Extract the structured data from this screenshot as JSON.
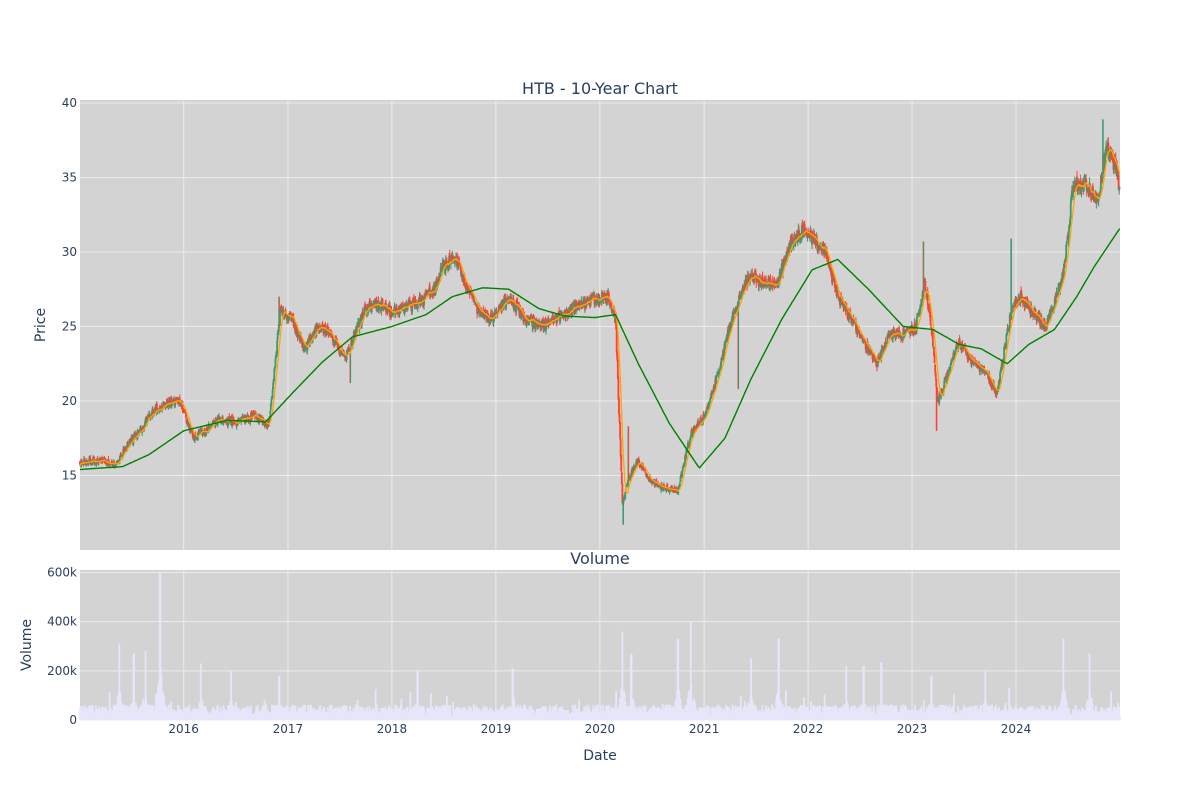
{
  "chart_data": [
    {
      "type": "candlestick",
      "title": "HTB - 10-Year Chart",
      "ylabel": "Price",
      "xlabel": "",
      "x_range": [
        "2015-01-02",
        "2024-12-31"
      ],
      "ylim": [
        10,
        40.2
      ],
      "y_ticks": [
        15,
        20,
        25,
        30,
        35,
        40
      ],
      "x_ticks": [
        {
          "date": "2016-01-01",
          "label": "2016"
        },
        {
          "date": "2017-01-01",
          "label": "2017"
        },
        {
          "date": "2018-01-01",
          "label": "2018"
        },
        {
          "date": "2019-01-01",
          "label": "2019"
        },
        {
          "date": "2020-01-01",
          "label": "2020"
        },
        {
          "date": "2021-01-01",
          "label": "2021"
        },
        {
          "date": "2022-01-01",
          "label": "2022"
        },
        {
          "date": "2023-01-01",
          "label": "2023"
        },
        {
          "date": "2024-01-01",
          "label": "2024"
        }
      ],
      "grid": true,
      "colors": {
        "up": "#3d9970",
        "down": "#ff4136",
        "ma_short": "#ffa500",
        "ma_long": "#008000",
        "plot_bg": "#d3d3d3",
        "grid": "#ebebeb",
        "text": "#2a3f5f"
      },
      "price_path": [
        [
          "2015-01-02",
          15.9
        ],
        [
          "2015-03-01",
          16.0
        ],
        [
          "2015-05-10",
          15.7
        ],
        [
          "2015-06-15",
          17.0
        ],
        [
          "2015-08-01",
          18.0
        ],
        [
          "2015-09-15",
          19.3
        ],
        [
          "2015-11-01",
          19.8
        ],
        [
          "2015-12-20",
          20.0
        ],
        [
          "2016-02-01",
          17.6
        ],
        [
          "2016-03-15",
          18.0
        ],
        [
          "2016-05-01",
          18.7
        ],
        [
          "2016-07-01",
          18.6
        ],
        [
          "2016-09-01",
          19.0
        ],
        [
          "2016-10-25",
          18.4
        ],
        [
          "2016-11-15",
          22.0
        ],
        [
          "2016-12-05",
          26.2
        ],
        [
          "2017-01-15",
          25.5
        ],
        [
          "2017-03-01",
          23.5
        ],
        [
          "2017-04-15",
          25.0
        ],
        [
          "2017-06-01",
          24.5
        ],
        [
          "2017-07-20",
          22.8
        ],
        [
          "2017-08-15",
          24.0
        ],
        [
          "2017-10-01",
          26.2
        ],
        [
          "2017-11-15",
          26.5
        ],
        [
          "2017-12-31",
          26.0
        ],
        [
          "2018-02-15",
          26.2
        ],
        [
          "2018-04-15",
          26.8
        ],
        [
          "2018-06-01",
          27.5
        ],
        [
          "2018-07-01",
          29.2
        ],
        [
          "2018-08-15",
          29.5
        ],
        [
          "2018-09-15",
          28.0
        ],
        [
          "2018-11-01",
          26.0
        ],
        [
          "2018-12-15",
          25.5
        ],
        [
          "2019-02-15",
          27.0
        ],
        [
          "2019-04-15",
          25.5
        ],
        [
          "2019-06-15",
          25.0
        ],
        [
          "2019-08-01",
          25.5
        ],
        [
          "2019-10-01",
          26.2
        ],
        [
          "2019-12-01",
          26.8
        ],
        [
          "2020-02-01",
          27.0
        ],
        [
          "2020-02-25",
          25.5
        ],
        [
          "2020-03-20",
          13.2
        ],
        [
          "2020-04-15",
          15.0
        ],
        [
          "2020-05-15",
          16.0
        ],
        [
          "2020-07-01",
          14.5
        ],
        [
          "2020-08-15",
          14.2
        ],
        [
          "2020-10-01",
          14.0
        ],
        [
          "2020-11-15",
          17.8
        ],
        [
          "2021-01-01",
          19.0
        ],
        [
          "2021-02-15",
          21.5
        ],
        [
          "2021-04-01",
          25.0
        ],
        [
          "2021-05-15",
          27.5
        ],
        [
          "2021-06-15",
          28.5
        ],
        [
          "2021-08-01",
          27.8
        ],
        [
          "2021-09-15",
          28.0
        ],
        [
          "2021-11-01",
          30.5
        ],
        [
          "2021-12-15",
          31.5
        ],
        [
          "2022-01-15",
          31.0
        ],
        [
          "2022-03-01",
          30.0
        ],
        [
          "2022-04-15",
          27.0
        ],
        [
          "2022-06-01",
          25.5
        ],
        [
          "2022-07-15",
          24.0
        ],
        [
          "2022-09-01",
          22.5
        ],
        [
          "2022-10-15",
          24.5
        ],
        [
          "2022-12-01",
          24.5
        ],
        [
          "2023-01-15",
          25.0
        ],
        [
          "2023-02-15",
          28.0
        ],
        [
          "2023-03-10",
          25.0
        ],
        [
          "2023-04-01",
          20.0
        ],
        [
          "2023-05-01",
          21.5
        ],
        [
          "2023-06-15",
          24.0
        ],
        [
          "2023-08-01",
          22.5
        ],
        [
          "2023-09-15",
          22.0
        ],
        [
          "2023-10-25",
          20.5
        ],
        [
          "2023-12-15",
          26.0
        ],
        [
          "2024-01-15",
          27.0
        ],
        [
          "2024-03-01",
          26.0
        ],
        [
          "2024-04-15",
          25.0
        ],
        [
          "2024-05-15",
          26.5
        ],
        [
          "2024-06-15",
          28.5
        ],
        [
          "2024-07-20",
          34.5
        ],
        [
          "2024-09-01",
          34.5
        ],
        [
          "2024-10-15",
          33.5
        ],
        [
          "2024-11-15",
          37.0
        ],
        [
          "2024-12-20",
          35.5
        ],
        [
          "2024-12-31",
          33.8
        ]
      ],
      "ma_long_path": [
        [
          "2015-01-02",
          15.4
        ],
        [
          "2015-06-01",
          15.6
        ],
        [
          "2015-09-01",
          16.4
        ],
        [
          "2016-01-01",
          18.0
        ],
        [
          "2016-06-01",
          18.7
        ],
        [
          "2016-10-15",
          18.6
        ],
        [
          "2017-01-15",
          20.5
        ],
        [
          "2017-05-01",
          22.6
        ],
        [
          "2017-08-15",
          24.3
        ],
        [
          "2018-01-01",
          25.0
        ],
        [
          "2018-05-01",
          25.8
        ],
        [
          "2018-08-01",
          27.0
        ],
        [
          "2018-11-15",
          27.6
        ],
        [
          "2019-02-15",
          27.5
        ],
        [
          "2019-06-01",
          26.2
        ],
        [
          "2019-09-01",
          25.7
        ],
        [
          "2019-12-15",
          25.6
        ],
        [
          "2020-02-25",
          25.8
        ],
        [
          "2020-05-15",
          22.5
        ],
        [
          "2020-09-01",
          18.5
        ],
        [
          "2020-12-15",
          15.5
        ],
        [
          "2021-03-15",
          17.5
        ],
        [
          "2021-06-15",
          21.5
        ],
        [
          "2021-10-01",
          25.5
        ],
        [
          "2022-01-15",
          28.8
        ],
        [
          "2022-04-15",
          29.5
        ],
        [
          "2022-08-01",
          27.5
        ],
        [
          "2022-12-01",
          25.0
        ],
        [
          "2023-03-15",
          24.8
        ],
        [
          "2023-06-15",
          23.8
        ],
        [
          "2023-09-01",
          23.5
        ],
        [
          "2023-12-01",
          22.5
        ],
        [
          "2024-02-15",
          23.8
        ],
        [
          "2024-05-15",
          24.8
        ],
        [
          "2024-08-01",
          27.0
        ],
        [
          "2024-10-01",
          29.0
        ],
        [
          "2024-12-31",
          31.6
        ]
      ],
      "spikes": [
        {
          "date": "2016-12-01",
          "high": 27.0
        },
        {
          "date": "2017-08-08",
          "low": 21.2
        },
        {
          "date": "2020-03-23",
          "low": 11.7
        },
        {
          "date": "2020-04-10",
          "high": 18.3
        },
        {
          "date": "2021-05-01",
          "low": 20.8
        },
        {
          "date": "2023-02-10",
          "high": 30.7
        },
        {
          "date": "2023-03-28",
          "low": 18.0
        },
        {
          "date": "2023-12-15",
          "high": 30.9
        },
        {
          "date": "2024-11-01",
          "high": 38.9
        }
      ]
    },
    {
      "type": "bar",
      "title": "Volume",
      "xlabel": "Date",
      "ylabel": "Volume",
      "ylim": [
        0,
        610000
      ],
      "y_ticks": [
        {
          "value": 0,
          "label": "0"
        },
        {
          "value": 200000,
          "label": "200k"
        },
        {
          "value": 400000,
          "label": "400k"
        },
        {
          "value": 600000,
          "label": "600k"
        }
      ],
      "x_ticks": [
        "2016",
        "2017",
        "2018",
        "2019",
        "2020",
        "2021",
        "2022",
        "2023",
        "2024"
      ],
      "bar_color": "#e6e6fa",
      "base_level": 45000,
      "peaks": [
        {
          "date": "2015-05-20",
          "value": 310000
        },
        {
          "date": "2015-07-10",
          "value": 270000
        },
        {
          "date": "2015-08-20",
          "value": 280000
        },
        {
          "date": "2015-10-10",
          "value": 600000
        },
        {
          "date": "2016-03-01",
          "value": 230000
        },
        {
          "date": "2016-06-15",
          "value": 200000
        },
        {
          "date": "2016-12-01",
          "value": 180000
        },
        {
          "date": "2018-04-01",
          "value": 200000
        },
        {
          "date": "2019-03-01",
          "value": 210000
        },
        {
          "date": "2020-03-20",
          "value": 360000
        },
        {
          "date": "2020-04-20",
          "value": 270000
        },
        {
          "date": "2020-10-01",
          "value": 330000
        },
        {
          "date": "2020-11-15",
          "value": 400000
        },
        {
          "date": "2021-06-15",
          "value": 250000
        },
        {
          "date": "2021-09-20",
          "value": 330000
        },
        {
          "date": "2022-05-15",
          "value": 220000
        },
        {
          "date": "2022-07-15",
          "value": 220000
        },
        {
          "date": "2022-09-15",
          "value": 235000
        },
        {
          "date": "2023-03-10",
          "value": 180000
        },
        {
          "date": "2023-09-15",
          "value": 200000
        },
        {
          "date": "2024-06-15",
          "value": 330000
        },
        {
          "date": "2024-09-15",
          "value": 270000
        }
      ]
    }
  ]
}
